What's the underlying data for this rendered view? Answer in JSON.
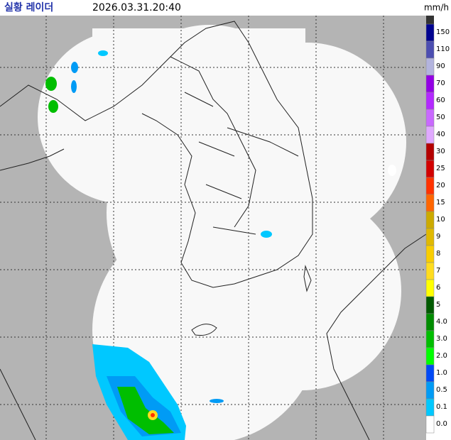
{
  "header": {
    "title": "실황 레이더",
    "time": "2026.03.31.20:40"
  },
  "legend": {
    "unit": "mm/h",
    "items": [
      {
        "label": "150",
        "color": "#000390"
      },
      {
        "label": "110",
        "color": "#4c4eb1"
      },
      {
        "label": "90",
        "color": "#b3b4de"
      },
      {
        "label": "70",
        "color": "#9300e4"
      },
      {
        "label": "60",
        "color": "#b329ff"
      },
      {
        "label": "50",
        "color": "#c969ff"
      },
      {
        "label": "40",
        "color": "#e0a9ff"
      },
      {
        "label": "30",
        "color": "#b40000"
      },
      {
        "label": "25",
        "color": "#d20000"
      },
      {
        "label": "20",
        "color": "#ff3200"
      },
      {
        "label": "15",
        "color": "#ff6600"
      },
      {
        "label": "10",
        "color": "#ccaa00"
      },
      {
        "label": "9",
        "color": "#e0b900"
      },
      {
        "label": "8",
        "color": "#f9cd00"
      },
      {
        "label": "7",
        "color": "#ffdc1f"
      },
      {
        "label": "6",
        "color": "#ffff00"
      },
      {
        "label": "5",
        "color": "#005a00"
      },
      {
        "label": "4.0",
        "color": "#008c00"
      },
      {
        "label": "3.0",
        "color": "#00be00"
      },
      {
        "label": "2.0",
        "color": "#00ff00"
      },
      {
        "label": "1.0",
        "color": "#0049f5"
      },
      {
        "label": "0.5",
        "color": "#009bf5"
      },
      {
        "label": "0.1",
        "color": "#00c8ff"
      },
      {
        "label": "0.0",
        "color": "#ffffff"
      }
    ]
  }
}
